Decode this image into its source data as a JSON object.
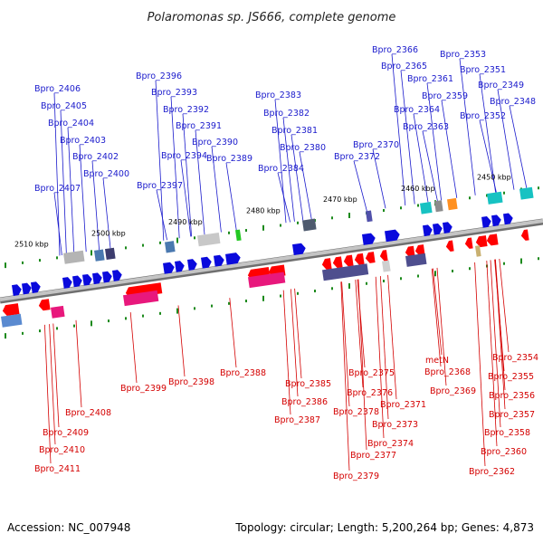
{
  "title": "Polaromonas sp. JS666, complete genome",
  "footer": {
    "accession": "Accession: NC_007948",
    "summary": "Topology: circular; Length: 5,200,264 bp; Genes: 4,873"
  },
  "scale_labels": [
    "2510 kbp",
    "2500 kbp",
    "2490 kbp",
    "2480 kbp",
    "2470 kbp",
    "2460 kbp",
    "2450 kbp"
  ],
  "top_labels": [
    "Bpro_2406",
    "Bpro_2405",
    "Bpro_2404",
    "Bpro_2403",
    "Bpro_2402",
    "Bpro_2400",
    "Bpro_2407",
    "Bpro_2396",
    "Bpro_2393",
    "Bpro_2392",
    "Bpro_2391",
    "Bpro_2390",
    "Bpro_2394",
    "Bpro_2389",
    "Bpro_2397",
    "Bpro_2383",
    "Bpro_2382",
    "Bpro_2381",
    "Bpro_2380",
    "Bpro_2384",
    "Bpro_2370",
    "Bpro_2372",
    "Bpro_2366",
    "Bpro_2365",
    "Bpro_2361",
    "Bpro_2364",
    "Bpro_2363",
    "Bpro_2359",
    "Bpro_2353",
    "Bpro_2351",
    "Bpro_2349",
    "Bpro_2352",
    "Bpro_2348"
  ],
  "bottom_labels": [
    "Bpro_2408",
    "Bpro_2409",
    "Bpro_2410",
    "Bpro_2411",
    "Bpro_2399",
    "Bpro_2398",
    "Bpro_2388",
    "Bpro_2385",
    "Bpro_2386",
    "Bpro_2387",
    "Bpro_2375",
    "Bpro_2376",
    "Bpro_2378",
    "Bpro_2373",
    "Bpro_2374",
    "Bpro_2377",
    "Bpro_2379",
    "Bpro_2371",
    "metN",
    "Bpro_2368",
    "Bpro_2369",
    "Bpro_2354",
    "Bpro_2355",
    "Bpro_2356",
    "Bpro_2357",
    "Bpro_2358",
    "Bpro_2360",
    "Bpro_2362"
  ],
  "colors": {
    "forward_arrow": "#0a0adc",
    "reverse_arrow": "#ff0000",
    "forward_label": "#1a1acc",
    "reverse_label": "#d40000",
    "backbone": "#999999",
    "tick": "#1c8a1c"
  }
}
